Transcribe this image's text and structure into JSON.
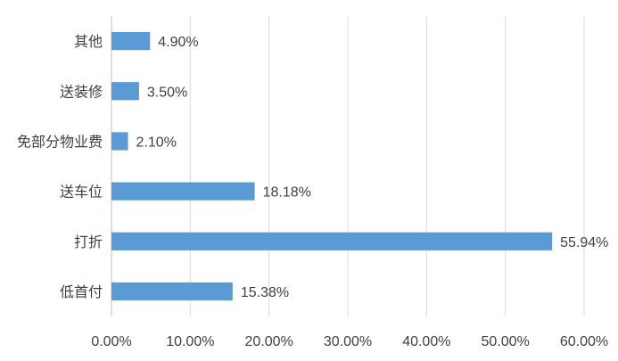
{
  "chart_data": {
    "type": "bar",
    "orientation": "horizontal",
    "categories": [
      "其他",
      "送装修",
      "免部分物业费",
      "送车位",
      "打折",
      "低首付"
    ],
    "values": [
      4.9,
      3.5,
      2.1,
      18.18,
      55.94,
      15.38
    ],
    "data_labels": [
      "4.90%",
      "3.50%",
      "2.10%",
      "18.18%",
      "55.94%",
      "15.38%"
    ],
    "xlim": [
      0,
      60
    ],
    "x_ticks": [
      0,
      10,
      20,
      30,
      40,
      50,
      60
    ],
    "x_tick_labels": [
      "0.00%",
      "10.00%",
      "20.00%",
      "30.00%",
      "40.00%",
      "50.00%",
      "60.00%"
    ],
    "title": "",
    "xlabel": "",
    "ylabel": "",
    "grid": "vertical",
    "legend": "none",
    "bar_color": "#5b9bd5",
    "grid_color": "#d9d9d9",
    "text_color": "#404040"
  }
}
